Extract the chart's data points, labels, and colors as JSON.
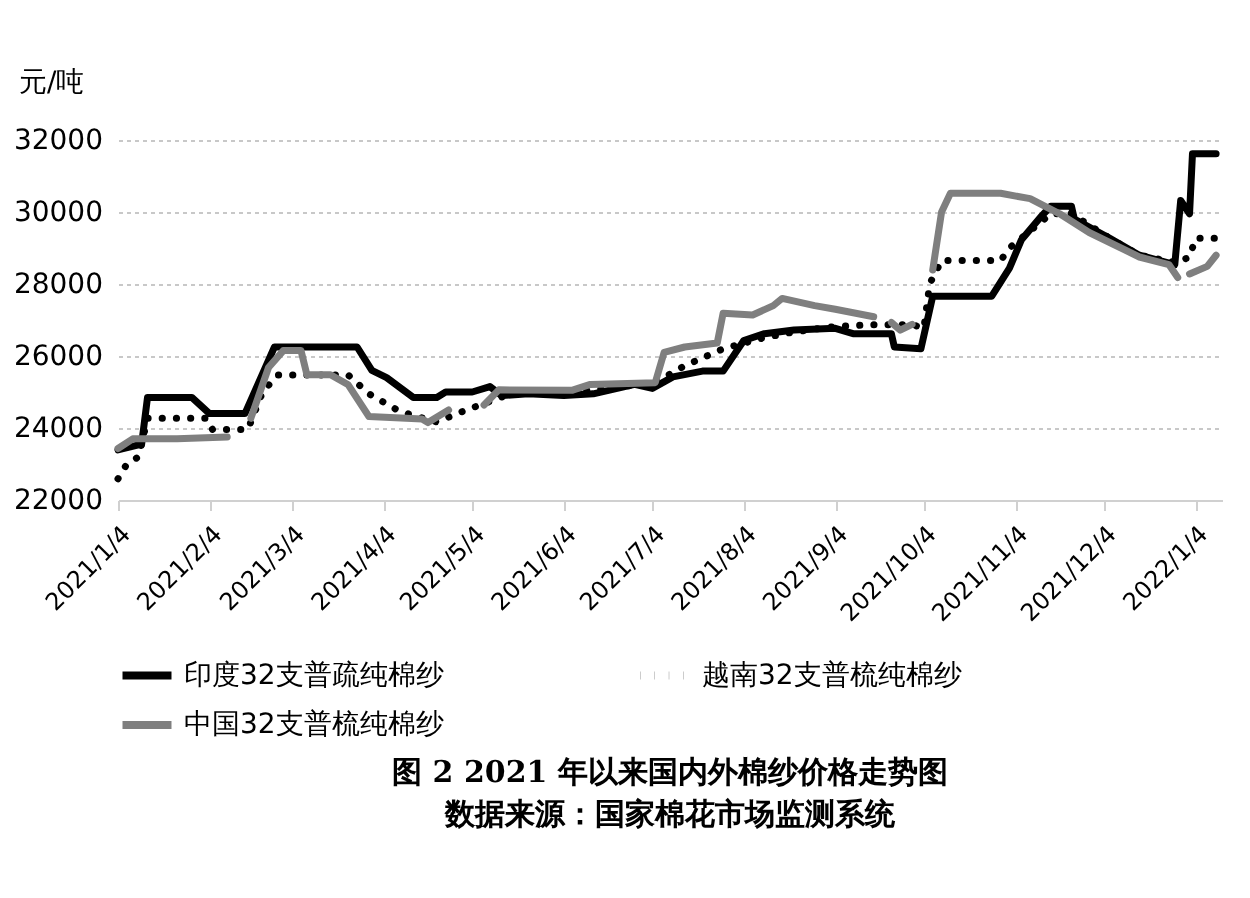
{
  "chart_data": {
    "type": "line",
    "title": "图 2 2021 年以来国内外棉纱价格走势图",
    "annotations": [
      "数据来源：国家棉花市场监测系统"
    ],
    "ylabel": "元/吨",
    "xlim": [
      "2021-01-04",
      "2022-01-13"
    ],
    "xticks": [
      {
        "value": "2021-01-04",
        "label": "2021/1/4"
      },
      {
        "value": "2021-02-04",
        "label": "2021/2/4"
      },
      {
        "value": "2021-03-04",
        "label": "2021/3/4"
      },
      {
        "value": "2021-04-04",
        "label": "2021/4/4"
      },
      {
        "value": "2021-05-04",
        "label": "2021/5/4"
      },
      {
        "value": "2021-06-04",
        "label": "2021/6/4"
      },
      {
        "value": "2021-07-04",
        "label": "2021/7/4"
      },
      {
        "value": "2021-08-04",
        "label": "2021/8/4"
      },
      {
        "value": "2021-09-04",
        "label": "2021/9/4"
      },
      {
        "value": "2021-10-04",
        "label": "2021/10/4"
      },
      {
        "value": "2021-11-04",
        "label": "2021/11/4"
      },
      {
        "value": "2021-12-04",
        "label": "2021/12/4"
      },
      {
        "value": "2022-01-04",
        "label": "2022/1/4"
      }
    ],
    "ylim": [
      22000,
      32000
    ],
    "yticks": [
      22000,
      24000,
      26000,
      28000,
      30000,
      32000
    ],
    "grid": "y",
    "legend": "bottom",
    "marker": "none",
    "series": [
      {
        "name": "印度32支普疏纯棉纱",
        "color": "#000000",
        "line_style": "solid",
        "x": [
          "2021-01-04",
          "2021-01-12",
          "2021-01-14",
          "2021-01-29",
          "2021-02-04",
          "2021-02-16",
          "2021-02-26",
          "2021-03-26",
          "2021-03-31",
          "2021-04-05",
          "2021-04-14",
          "2021-04-22",
          "2021-04-25",
          "2021-05-04",
          "2021-05-10",
          "2021-05-14",
          "2021-05-23",
          "2021-06-04",
          "2021-06-14",
          "2021-06-28",
          "2021-07-04",
          "2021-07-11",
          "2021-07-21",
          "2021-07-28",
          "2021-08-04",
          "2021-08-11",
          "2021-08-21",
          "2021-09-04",
          "2021-09-10",
          "2021-09-23",
          "2021-09-24",
          "2021-10-03",
          "2021-10-07",
          "2021-10-27",
          "2021-11-02",
          "2021-11-06",
          "2021-11-13",
          "2021-11-16",
          "2021-11-23",
          "2021-11-24",
          "2021-12-06",
          "2021-12-16",
          "2021-12-28",
          "2021-12-30",
          "2022-01-02",
          "2022-01-03",
          "2022-01-11"
        ],
        "values": [
          23390,
          23550,
          24850,
          24850,
          24400,
          24400,
          26250,
          26250,
          25600,
          25400,
          24850,
          24850,
          25000,
          25000,
          25150,
          24900,
          24950,
          24900,
          24950,
          25210,
          25100,
          25420,
          25580,
          25580,
          26430,
          26620,
          26720,
          26770,
          26620,
          26620,
          26250,
          26200,
          27660,
          27660,
          28440,
          29220,
          29900,
          30160,
          30160,
          29800,
          29270,
          28800,
          28540,
          30320,
          29950,
          31620,
          31620
        ]
      },
      {
        "name": "越南32支普梳纯棉纱",
        "color": "#000000",
        "line_style": "dotted",
        "x": [
          "2021-01-04",
          "2021-01-07",
          "2021-01-11",
          "2021-01-14",
          "2021-02-03",
          "2021-02-05",
          "2021-02-17",
          "2021-02-22",
          "2021-02-27",
          "2021-03-23",
          "2021-03-30",
          "2021-04-09",
          "2021-04-16",
          "2021-04-22",
          "2021-05-02",
          "2021-05-15",
          "2021-05-23",
          "2021-06-14",
          "2021-07-05",
          "2021-07-15",
          "2021-07-28",
          "2021-08-11",
          "2021-08-21",
          "2021-09-04",
          "2021-09-17",
          "2021-09-30",
          "2021-10-04",
          "2021-10-06",
          "2021-10-10",
          "2021-10-30",
          "2021-11-02",
          "2021-11-16",
          "2021-11-23",
          "2021-12-06",
          "2021-12-16",
          "2021-12-28",
          "2022-01-02",
          "2022-01-04",
          "2022-01-11"
        ],
        "values": [
          22590,
          23000,
          23200,
          24270,
          24270,
          23960,
          23960,
          25000,
          25470,
          25470,
          24950,
          24480,
          24300,
          24170,
          24500,
          24890,
          25000,
          25050,
          25260,
          25730,
          26200,
          26510,
          26670,
          26820,
          26870,
          26870,
          26770,
          28010,
          28650,
          28650,
          29000,
          29950,
          29950,
          29270,
          28800,
          28600,
          28740,
          29270,
          29270
        ]
      },
      {
        "name": "中国32支普梳纯棉纱",
        "color": "#7f7f7f",
        "line_style": "solid",
        "x": [
          "2021-01-04",
          "2021-01-09",
          "2021-01-24",
          "2021-02-10",
          "2021-02-14",
          "2021-02-18",
          "2021-02-24",
          "2021-03-01",
          "2021-03-07",
          "2021-03-09",
          "2021-03-17",
          "2021-03-23",
          "2021-03-30",
          "2021-04-17",
          "2021-04-19",
          "2021-04-26",
          "2021-05-02",
          "2021-05-08",
          "2021-05-13",
          "2021-06-07",
          "2021-06-13",
          "2021-07-05",
          "2021-07-08",
          "2021-07-15",
          "2021-07-26",
          "2021-07-28",
          "2021-08-07",
          "2021-08-14",
          "2021-08-17",
          "2021-08-28",
          "2021-09-04",
          "2021-09-17",
          "2021-09-20",
          "2021-09-23",
          "2021-09-26",
          "2021-09-30",
          "2021-10-04",
          "2021-10-07",
          "2021-10-10",
          "2021-10-13",
          "2021-10-30",
          "2021-11-09",
          "2021-11-19",
          "2021-11-29",
          "2021-12-16",
          "2021-12-26",
          "2021-12-29",
          "2021-12-31",
          "2022-01-02",
          "2022-01-08",
          "2022-01-11"
        ],
        "values": [
          23430,
          23700,
          23700,
          23750,
          null,
          24270,
          25680,
          26150,
          26150,
          25480,
          25480,
          25200,
          24320,
          24250,
          24150,
          24500,
          null,
          24640,
          25060,
          25050,
          25210,
          25260,
          26100,
          26250,
          26360,
          27190,
          27140,
          27400,
          27600,
          27400,
          27300,
          27090,
          null,
          26930,
          26720,
          26880,
          null,
          28390,
          30000,
          30520,
          30520,
          30370,
          29950,
          29430,
          28750,
          28540,
          28180,
          null,
          28280,
          28490,
          28800
        ]
      }
    ]
  }
}
